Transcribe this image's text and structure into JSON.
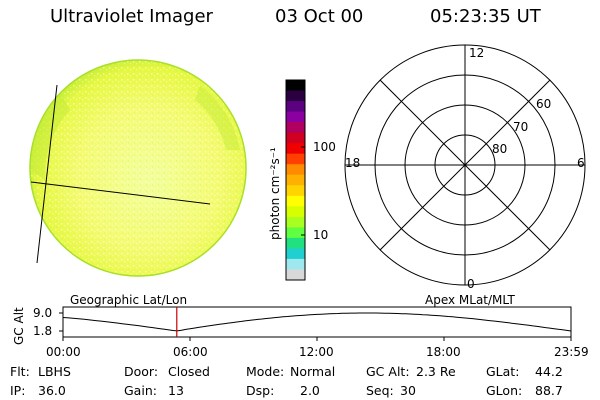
{
  "header": {
    "title": "Ultraviolet Imager",
    "date": "03 Oct 00",
    "time": "05:23:35 UT"
  },
  "colorbar": {
    "unit_label": "photon cm⁻²s⁻¹",
    "ticks": [
      "100",
      "10"
    ],
    "colors": [
      "#000000",
      "#2a0040",
      "#5a0080",
      "#8a00a0",
      "#b00060",
      "#d00020",
      "#f00000",
      "#ff4000",
      "#ff8c00",
      "#ffb000",
      "#ffd400",
      "#ffff00",
      "#d8ff00",
      "#a8ff20",
      "#60ff40",
      "#20e080",
      "#20d0d0",
      "#a0e8f0",
      "#d8d8d8"
    ]
  },
  "polar": {
    "labels": {
      "top": "12",
      "bottom": "0",
      "left": "18",
      "right": "6",
      "r60": "60",
      "r70": "70",
      "r80": "80"
    }
  },
  "orbit": {
    "left_title": "Geographic Lat/Lon",
    "right_title": "Apex MLat/MLT",
    "y_axis_label": "GC Alt",
    "y_ticks": [
      "9.0",
      "1.8"
    ],
    "x_ticks": [
      "00:00",
      "06:00",
      "12:00",
      "18:00",
      "23:59"
    ],
    "current_time_fraction": 0.224
  },
  "info": {
    "flt_label": "Flt:",
    "flt_value": "LBHS",
    "ip_label": "IP:",
    "ip_value": "36.0",
    "door_label": "Door:",
    "door_value": "Closed",
    "gain_label": "Gain:",
    "gain_value": "13",
    "mode_label": "Mode:",
    "mode_value": "Normal",
    "dsp_label": "Dsp:",
    "dsp_value": "2.0",
    "gcalt_label": "GC Alt:",
    "gcalt_value": "2.3 Re",
    "seq_label": "Seq:",
    "seq_value": "30",
    "glat_label": "GLat:",
    "glat_value": "44.2",
    "glon_label": "GLon:",
    "glon_value": "88.7"
  }
}
